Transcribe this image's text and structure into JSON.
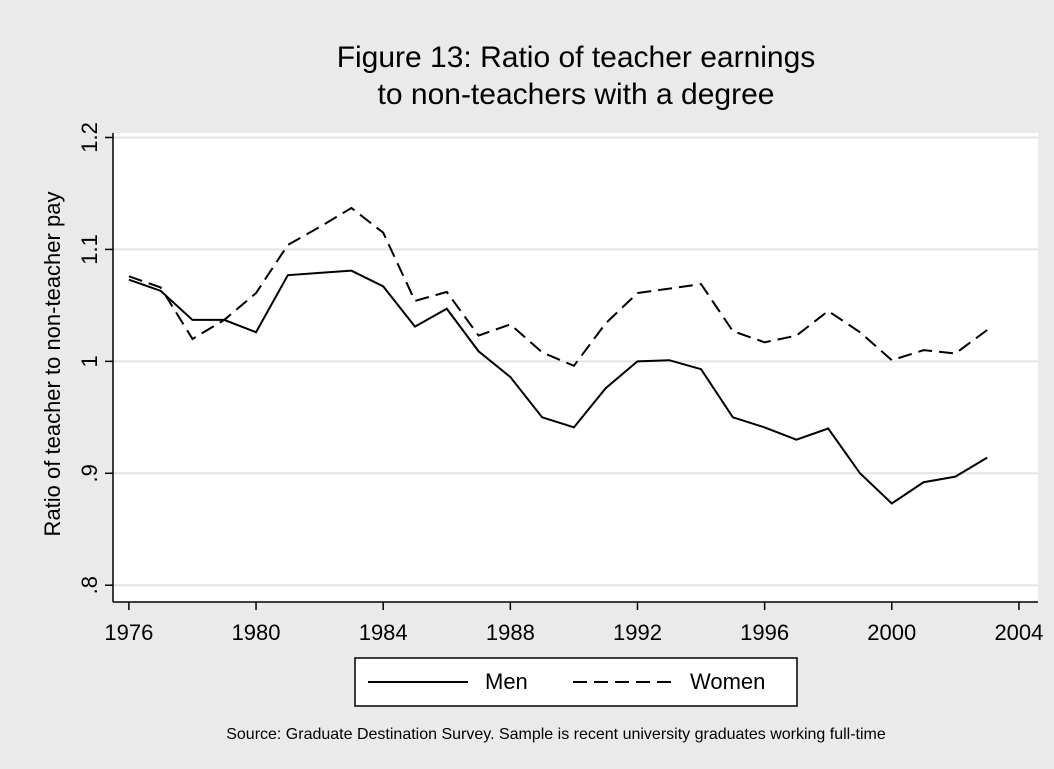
{
  "chart_data": {
    "type": "line",
    "title": [
      "Figure 13: Ratio of teacher earnings",
      "to non-teachers with a degree"
    ],
    "y_label": "Ratio of teacher to non-teacher pay",
    "note": "Source: Graduate Destination Survey. Sample is recent university graduates working full-time",
    "x": [
      1976,
      1977,
      1978,
      1979,
      1980,
      1981,
      1982,
      1983,
      1984,
      1985,
      1986,
      1987,
      1988,
      1989,
      1990,
      1991,
      1992,
      1993,
      1994,
      1995,
      1996,
      1997,
      1998,
      1999,
      2000,
      2001,
      2002,
      2003
    ],
    "series": [
      {
        "name": "Men",
        "color": "#000000",
        "dash": "solid",
        "values": [
          1.073,
          1.063,
          1.037,
          1.037,
          1.026,
          1.077,
          1.079,
          1.081,
          1.067,
          1.031,
          1.047,
          1.009,
          0.986,
          0.95,
          0.941,
          0.976,
          1.0,
          1.001,
          0.993,
          0.95,
          0.941,
          0.93,
          0.94,
          0.9,
          0.873,
          0.892,
          0.897,
          0.914
        ]
      },
      {
        "name": "Women",
        "color": "#000000",
        "dash": "dashed",
        "values": [
          1.076,
          1.066,
          1.02,
          1.037,
          1.061,
          1.104,
          1.12,
          1.137,
          1.115,
          1.054,
          1.062,
          1.023,
          1.033,
          1.008,
          0.996,
          1.034,
          1.061,
          1.065,
          1.069,
          1.027,
          1.017,
          1.023,
          1.045,
          1.026,
          1.001,
          1.01,
          1.007,
          1.028
        ]
      }
    ],
    "xlim": [
      1975.5,
      2004.6
    ],
    "xticks": [
      1976,
      1980,
      1984,
      1988,
      1992,
      1996,
      2000,
      2004
    ],
    "ylim": [
      0.785,
      1.204
    ],
    "yticks": [
      {
        "value": 0.8,
        "label": ".8"
      },
      {
        "value": 0.9,
        "label": ".9"
      },
      1,
      1.1,
      1.2
    ],
    "grid": true,
    "legend": "bottom"
  }
}
